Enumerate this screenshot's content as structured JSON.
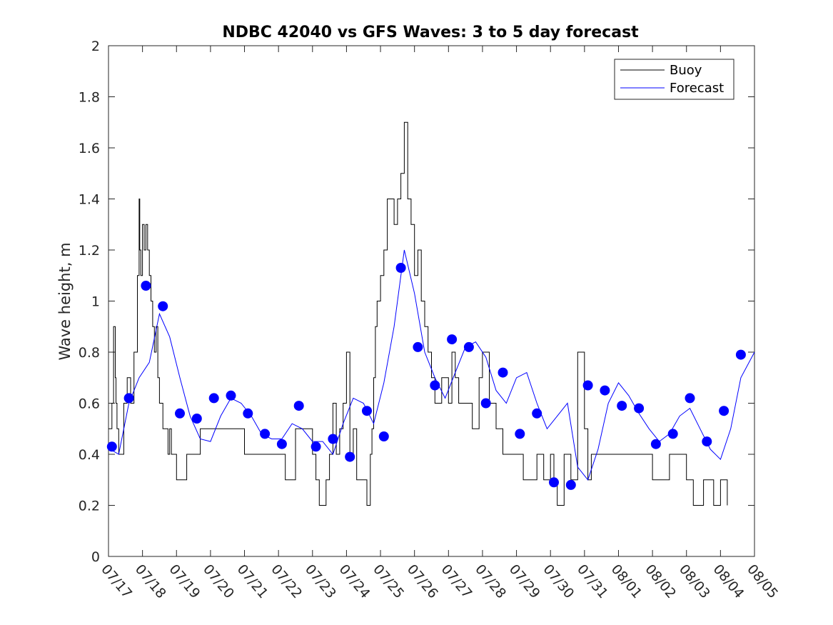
{
  "chart_data": {
    "type": "line",
    "title": "NDBC 42040 vs GFS Waves: 3 to 5 day forecast",
    "xlabel": "",
    "ylabel": "Wave height, m",
    "ylim": [
      0,
      2
    ],
    "yticks": [
      0,
      0.2,
      0.4,
      0.6,
      0.8,
      1,
      1.2,
      1.4,
      1.6,
      1.8,
      2
    ],
    "ytick_labels": [
      "0",
      "0.2",
      "0.4",
      "0.6",
      "0.8",
      "1",
      "1.2",
      "1.4",
      "1.6",
      "1.8",
      "2"
    ],
    "xlim_days": [
      0,
      19
    ],
    "xtick_labels": [
      "07/17",
      "07/18",
      "07/19",
      "07/20",
      "07/21",
      "07/22",
      "07/23",
      "07/24",
      "07/25",
      "07/26",
      "07/27",
      "07/28",
      "07/29",
      "07/30",
      "07/31",
      "08/01",
      "08/02",
      "08/03",
      "08/04",
      "08/05"
    ],
    "legend": {
      "position": "top-right",
      "entries": [
        "Buoy",
        "Forecast"
      ]
    },
    "colors": {
      "buoy": "#000000",
      "forecast": "#0000ff",
      "axis": "#262626"
    },
    "series": [
      {
        "name": "Buoy",
        "color": "#000000",
        "x": [
          0,
          0.1,
          0.15,
          0.2,
          0.22,
          0.25,
          0.3,
          0.35,
          0.45,
          0.55,
          0.65,
          0.75,
          0.85,
          0.9,
          0.92,
          0.95,
          1.0,
          1.05,
          1.1,
          1.15,
          1.2,
          1.25,
          1.3,
          1.35,
          1.4,
          1.45,
          1.5,
          1.55,
          1.6,
          1.65,
          1.7,
          1.75,
          1.8,
          1.85,
          1.9,
          1.95,
          2.0,
          2.1,
          2.2,
          2.3,
          2.4,
          2.5,
          2.6,
          2.7,
          2.8,
          3.0,
          3.2,
          3.5,
          4.0,
          4.2,
          4.5,
          5.0,
          5.2,
          5.5,
          6.0,
          6.1,
          6.2,
          6.3,
          6.4,
          6.5,
          6.6,
          6.7,
          6.8,
          6.9,
          7.0,
          7.1,
          7.2,
          7.3,
          7.5,
          7.6,
          7.7,
          7.75,
          7.8,
          7.85,
          7.9,
          8.0,
          8.1,
          8.2,
          8.4,
          8.5,
          8.6,
          8.7,
          8.8,
          8.9,
          9.0,
          9.1,
          9.2,
          9.3,
          9.4,
          9.5,
          9.6,
          9.7,
          9.8,
          9.9,
          10.0,
          10.1,
          10.2,
          10.3,
          10.5,
          10.7,
          10.9,
          11.0,
          11.2,
          11.4,
          11.6,
          11.8,
          12.0,
          12.2,
          12.4,
          12.6,
          12.8,
          13.0,
          13.1,
          13.2,
          13.4,
          13.6,
          13.8,
          14.0,
          14.1,
          14.2,
          14.3,
          14.4,
          14.5,
          14.6,
          14.8,
          15.0,
          15.5,
          16.0,
          16.5,
          16.8,
          17.0,
          17.2,
          17.5,
          17.8,
          18.0,
          18.2
        ],
        "values": [
          0.5,
          0.6,
          0.9,
          0.7,
          0.6,
          0.5,
          0.4,
          0.4,
          0.6,
          0.7,
          0.6,
          0.8,
          1.1,
          1.4,
          1.2,
          1.1,
          1.3,
          1.2,
          1.3,
          1.2,
          1.1,
          1.0,
          0.9,
          0.8,
          0.9,
          0.7,
          0.6,
          0.6,
          0.5,
          0.5,
          0.5,
          0.4,
          0.5,
          0.4,
          0.4,
          0.4,
          0.3,
          0.3,
          0.3,
          0.4,
          0.4,
          0.4,
          0.4,
          0.5,
          0.5,
          0.5,
          0.5,
          0.5,
          0.4,
          0.4,
          0.4,
          0.4,
          0.3,
          0.5,
          0.4,
          0.3,
          0.2,
          0.2,
          0.3,
          0.4,
          0.6,
          0.4,
          0.5,
          0.6,
          0.8,
          0.4,
          0.5,
          0.3,
          0.3,
          0.2,
          0.4,
          0.5,
          0.7,
          0.9,
          1.0,
          1.1,
          1.2,
          1.4,
          1.3,
          1.4,
          1.5,
          1.7,
          1.4,
          1.3,
          1.1,
          1.2,
          1.0,
          0.9,
          0.8,
          0.7,
          0.6,
          0.6,
          0.7,
          0.7,
          0.6,
          0.8,
          0.7,
          0.6,
          0.6,
          0.5,
          0.7,
          0.8,
          0.6,
          0.5,
          0.4,
          0.4,
          0.4,
          0.3,
          0.3,
          0.4,
          0.3,
          0.4,
          0.3,
          0.2,
          0.4,
          0.3,
          0.8,
          0.5,
          0.3,
          0.4,
          0.4,
          0.4,
          0.4,
          0.4,
          0.4,
          0.4,
          0.4,
          0.3,
          0.4,
          0.4,
          0.3,
          0.2,
          0.3,
          0.2,
          0.3,
          0.2
        ]
      },
      {
        "name": "Forecast",
        "color": "#0000ff",
        "x": [
          0.05,
          0.3,
          0.6,
          0.9,
          1.2,
          1.5,
          1.8,
          2.1,
          2.4,
          2.7,
          3.0,
          3.3,
          3.6,
          3.9,
          4.2,
          4.5,
          4.8,
          5.1,
          5.4,
          5.7,
          6.0,
          6.3,
          6.6,
          6.9,
          7.2,
          7.5,
          7.8,
          8.1,
          8.4,
          8.7,
          9.0,
          9.3,
          9.6,
          9.9,
          10.2,
          10.5,
          10.8,
          11.1,
          11.4,
          11.7,
          12.0,
          12.3,
          12.6,
          12.9,
          13.2,
          13.5,
          13.8,
          14.1,
          14.4,
          14.7,
          15.0,
          15.3,
          15.6,
          15.9,
          16.2,
          16.5,
          16.8,
          17.1,
          17.4,
          17.7,
          18.0,
          18.3,
          18.6,
          19.0
        ],
        "values": [
          0.42,
          0.4,
          0.6,
          0.7,
          0.76,
          0.95,
          0.86,
          0.7,
          0.55,
          0.46,
          0.45,
          0.55,
          0.62,
          0.6,
          0.55,
          0.48,
          0.46,
          0.46,
          0.52,
          0.5,
          0.45,
          0.45,
          0.4,
          0.52,
          0.62,
          0.6,
          0.52,
          0.68,
          0.9,
          1.2,
          1.03,
          0.8,
          0.7,
          0.62,
          0.72,
          0.82,
          0.84,
          0.78,
          0.65,
          0.6,
          0.7,
          0.72,
          0.6,
          0.5,
          0.55,
          0.6,
          0.35,
          0.3,
          0.42,
          0.6,
          0.68,
          0.63,
          0.56,
          0.5,
          0.45,
          0.48,
          0.55,
          0.58,
          0.5,
          0.42,
          0.38,
          0.5,
          0.7,
          0.8
        ]
      }
    ],
    "forecast_markers": {
      "name": "Forecast",
      "color": "#0000ff",
      "x": [
        0.1,
        0.6,
        1.1,
        1.6,
        2.1,
        2.6,
        3.1,
        3.6,
        4.1,
        4.6,
        5.1,
        5.6,
        6.1,
        6.6,
        7.1,
        7.6,
        8.1,
        8.6,
        9.1,
        9.6,
        10.1,
        10.6,
        11.1,
        11.6,
        12.1,
        12.6,
        13.1,
        13.6,
        14.1,
        14.6,
        15.1,
        15.6,
        16.1,
        16.6,
        17.1,
        17.6,
        18.1,
        18.6
      ],
      "values": [
        0.43,
        0.62,
        1.06,
        0.98,
        0.56,
        0.54,
        0.62,
        0.63,
        0.56,
        0.48,
        0.44,
        0.59,
        0.43,
        0.46,
        0.39,
        0.57,
        0.47,
        1.13,
        0.82,
        0.67,
        0.85,
        0.82,
        0.6,
        0.72,
        0.48,
        0.56,
        0.29,
        0.28,
        0.67,
        0.65,
        0.59,
        0.58,
        0.44,
        0.48,
        0.62,
        0.45,
        0.57,
        0.79
      ]
    }
  }
}
